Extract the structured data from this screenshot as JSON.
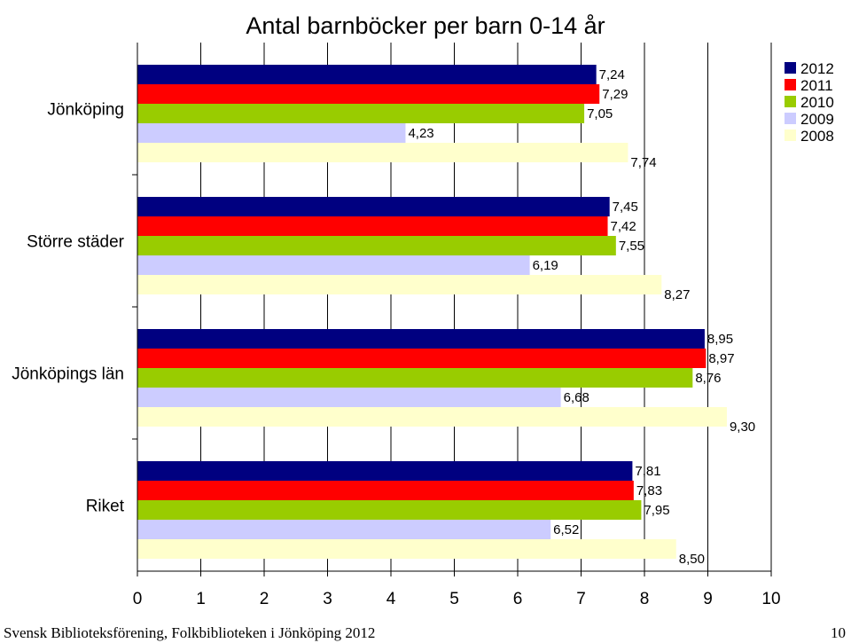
{
  "chart_data": {
    "type": "bar",
    "orientation": "horizontal",
    "title": "Antal barnböcker per barn 0-14 år",
    "categories": [
      "Jönköping",
      "Större städer",
      "Jönköpings län",
      "Riket"
    ],
    "series": [
      {
        "name": "2012",
        "color": "#000080",
        "values": [
          7.24,
          7.45,
          8.95,
          7.81
        ],
        "labels": [
          "7,24",
          "7,45",
          "8,95",
          "7,81"
        ]
      },
      {
        "name": "2011",
        "color": "#ff0000",
        "values": [
          7.29,
          7.42,
          8.97,
          7.83
        ],
        "labels": [
          "7,29",
          "7,42",
          "8,97",
          "7,83"
        ]
      },
      {
        "name": "2010",
        "color": "#99cc00",
        "values": [
          7.05,
          7.55,
          8.76,
          7.95
        ],
        "labels": [
          "7,05",
          "7,55",
          "8,76",
          "7,95"
        ]
      },
      {
        "name": "2009",
        "color": "#ccccff",
        "values": [
          4.23,
          6.19,
          6.68,
          6.52
        ],
        "labels": [
          "4,23",
          "6,19",
          "6,68",
          "6,52"
        ]
      },
      {
        "name": "2008",
        "color": "#ffffcc",
        "values": [
          7.74,
          8.27,
          9.3,
          8.5
        ],
        "labels": [
          "7,74",
          "8,27",
          "9,30",
          "8,50"
        ]
      }
    ],
    "xlim": [
      0,
      10
    ],
    "x_ticks": [
      "0",
      "1",
      "2",
      "3",
      "4",
      "5",
      "6",
      "7",
      "8",
      "9",
      "10"
    ],
    "gridlines": true,
    "legend_position": "top-right"
  },
  "footer": {
    "source": "Svensk Biblioteksförening, Folkbiblioteken i Jönköping 2012",
    "page_number": "10"
  }
}
